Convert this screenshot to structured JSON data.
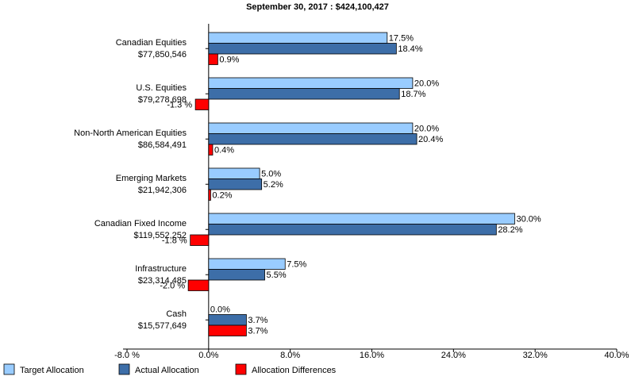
{
  "chart_data": {
    "type": "hbar",
    "title": "September 30, 2017 : $424,100,427",
    "categories": [
      "Canadian Equities",
      "U.S. Equities",
      "Non-North American Equities",
      "Emerging Markets",
      "Canadian Fixed Income",
      "Infrastructure",
      "Cash"
    ],
    "category_amounts": [
      "$77,850,546",
      "$79,278,698",
      "$86,584,491",
      "$21,942,306",
      "$119,552,252",
      "$23,314,485",
      "$15,577,649"
    ],
    "series": [
      {
        "name": "Target Allocation",
        "color": "#99ccff",
        "values": [
          17.5,
          20.0,
          20.0,
          5.0,
          30.0,
          7.5,
          0.0
        ],
        "value_labels": [
          "17.5%",
          "20.0%",
          "20.0%",
          "5.0%",
          "30.0%",
          "7.5%",
          "0.0%"
        ]
      },
      {
        "name": "Actual Allocation",
        "color": "#3d6ea8",
        "values": [
          18.4,
          18.7,
          20.4,
          5.2,
          28.2,
          5.5,
          3.7
        ],
        "value_labels": [
          "18.4%",
          "18.7%",
          "20.4%",
          "5.2%",
          "28.2%",
          "5.5%",
          "3.7%"
        ]
      },
      {
        "name": "Allocation Differences",
        "color": "#ff0000",
        "values": [
          0.9,
          -1.3,
          0.4,
          0.2,
          -1.8,
          -2.0,
          3.7
        ],
        "value_labels": [
          "0.9%",
          "-1.3 %",
          "0.4%",
          "0.2%",
          "-1.8 %",
          "-2.0 %",
          "3.7%"
        ]
      }
    ],
    "xlim": [
      -8,
      40
    ],
    "xticks": [
      {
        "value": -8,
        "label": "-8.0 %"
      },
      {
        "value": 0,
        "label": "0.0%"
      },
      {
        "value": 8,
        "label": "8.0%"
      },
      {
        "value": 16,
        "label": "16.0%"
      },
      {
        "value": 24,
        "label": "24.0%"
      },
      {
        "value": 32,
        "label": "32.0%"
      },
      {
        "value": 40,
        "label": "40.0%"
      }
    ]
  }
}
